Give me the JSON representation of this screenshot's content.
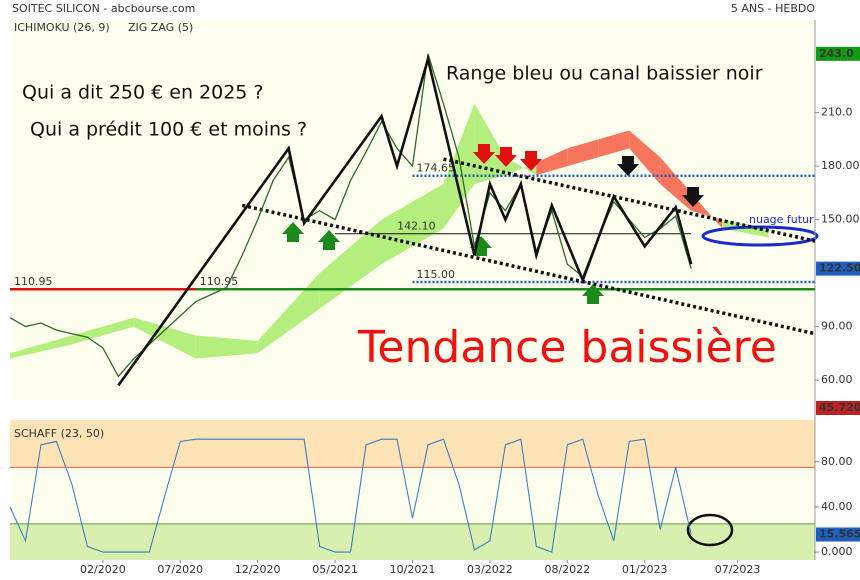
{
  "chart_data": {
    "type": "line",
    "title": "SOITEC SILICON - abcbourse.com",
    "period": "5 ANS - HEBDO",
    "indicators": [
      "ICHIMOKU (26, 9)",
      "ZIG ZAG (5)"
    ],
    "annotations": [
      "Qui a dit 250 € en 2025 ?",
      "Qui a prédit 100 € et moins ?",
      "Range  bleu ou canal baissier noir",
      "Tendance baissière",
      "nuage futur"
    ],
    "xlim": [
      "2019-08",
      "2023-12"
    ],
    "xticks": [
      {
        "value": "2020-02",
        "label": "02/2020"
      },
      {
        "value": "2020-07",
        "label": "07/2020"
      },
      {
        "value": "2020-12",
        "label": "12/2020"
      },
      {
        "value": "2021-05",
        "label": "05/2021"
      },
      {
        "value": "2021-10",
        "label": "10/2021"
      },
      {
        "value": "2022-03",
        "label": "03/2022"
      },
      {
        "value": "2022-08",
        "label": "08/2022"
      },
      {
        "value": "2023-01",
        "label": "01/2023"
      },
      {
        "value": "2023-07",
        "label": "07/2023"
      }
    ],
    "ylim": [
      48.8,
      262
    ],
    "yticks": [
      {
        "value": 210,
        "label": "210.0"
      },
      {
        "value": 180,
        "label": "180.00"
      },
      {
        "value": 150,
        "label": "150.00"
      },
      {
        "value": 90,
        "label": "90.00"
      },
      {
        "value": 60,
        "label": "60.00"
      }
    ],
    "x": [
      "2019-08",
      "2019-09",
      "2019-10",
      "2019-11",
      "2019-12",
      "2020-01",
      "2020-02",
      "2020-03",
      "2020-04",
      "2020-05",
      "2020-06",
      "2020-07",
      "2020-08",
      "2020-09",
      "2020-10",
      "2020-11",
      "2020-12",
      "2021-01",
      "2021-02",
      "2021-03",
      "2021-04",
      "2021-05",
      "2021-06",
      "2021-07",
      "2021-08",
      "2021-09",
      "2021-10",
      "2021-11",
      "2021-12",
      "2022-01",
      "2022-02",
      "2022-03",
      "2022-04",
      "2022-05",
      "2022-06",
      "2022-07",
      "2022-08",
      "2022-09",
      "2022-10",
      "2022-11",
      "2022-12",
      "2023-01",
      "2023-02",
      "2023-03",
      "2023-04"
    ],
    "price": {
      "color": "#2b6b2b",
      "values": [
        95,
        90,
        92,
        88,
        86,
        84,
        78,
        62,
        72,
        80,
        88,
        96,
        104,
        108,
        112,
        130,
        150,
        172,
        185,
        150,
        155,
        150,
        172,
        188,
        205,
        190,
        180,
        243,
        215,
        185,
        135,
        165,
        155,
        170,
        132,
        155,
        125,
        118,
        140,
        160,
        150,
        140,
        145,
        152,
        122.5
      ],
      "last_label": "122.50",
      "last_color": "#1e5fbf"
    },
    "markers": [
      {
        "value": 243,
        "label": "243.0",
        "color": "#139a13"
      }
    ],
    "zigzag": {
      "color": "#111",
      "x": [
        "2020-03",
        "2021-02",
        "2021-03",
        "2021-08",
        "2021-09",
        "2021-11",
        "2022-02",
        "2022-03",
        "2022-04",
        "2022-05",
        "2022-06",
        "2022-07",
        "2022-09",
        "2022-11",
        "2023-01",
        "2023-03",
        "2023-04"
      ],
      "values": [
        57,
        190,
        148,
        208,
        180,
        240,
        130,
        170,
        150,
        170,
        130,
        158,
        116,
        163,
        135,
        157,
        125
      ]
    },
    "cloud": {
      "colors": [
        "#b4ef7e",
        "#f7755c"
      ],
      "x": [
        "2019-08",
        "2019-12",
        "2020-04",
        "2020-08",
        "2020-12",
        "2021-04",
        "2021-08",
        "2021-12",
        "2022-02",
        "2022-04",
        "2022-06",
        "2022-08",
        "2022-10",
        "2022-12",
        "2023-02",
        "2023-04",
        "2023-06",
        "2023-09"
      ],
      "span_a": [
        75,
        85,
        95,
        85,
        82,
        120,
        150,
        170,
        215,
        185,
        175,
        180,
        185,
        190,
        170,
        155,
        150,
        145
      ],
      "span_b": [
        72,
        80,
        90,
        72,
        75,
        100,
        125,
        145,
        170,
        175,
        182,
        190,
        195,
        200,
        185,
        165,
        145,
        140
      ]
    },
    "levels": [
      {
        "value": 110.95,
        "color": "#e01010",
        "x": [
          "2019-08",
          "2020-09"
        ],
        "style": "solid"
      },
      {
        "value": 110.95,
        "color": "#1a8a1a",
        "x": [
          "2020-08",
          "2023-12"
        ],
        "style": "solid"
      },
      {
        "value": 174.65,
        "label": "174.65",
        "color": "#1e5fbf",
        "x": [
          "2021-10",
          "2023-12"
        ],
        "style": "dotted"
      },
      {
        "value": 142.1,
        "label": "142.10",
        "color": "#111",
        "x": [
          "2021-05",
          "2023-04"
        ],
        "style": "thin"
      },
      {
        "value": 115,
        "label": "115.00",
        "color": "#1e5fbf",
        "x": [
          "2021-10",
          "2023-12"
        ],
        "style": "dotted"
      }
    ],
    "trendlines": [
      {
        "x": [
          "2021-12",
          "2023-12"
        ],
        "values": [
          184,
          138
        ]
      },
      {
        "x": [
          "2020-11",
          "2023-12"
        ],
        "values": [
          158,
          86
        ]
      }
    ],
    "gap_label": {
      "value": 45.72,
      "label": "45.720",
      "color": "#c02020"
    },
    "schaff": {
      "name": "SCHAFF (23, 50)",
      "color": "#3d7fc4",
      "ylim": [
        -7,
        117
      ],
      "yticks": [
        {
          "value": 80,
          "label": "80.00"
        },
        {
          "value": 40,
          "label": "40.00"
        },
        {
          "value": 0,
          "label": "0.000"
        }
      ],
      "levels": [
        75,
        25
      ],
      "values": [
        40,
        10,
        95,
        98,
        60,
        5,
        0,
        0,
        0,
        0,
        50,
        98,
        100,
        100,
        100,
        100,
        100,
        100,
        100,
        100,
        5,
        0,
        0,
        95,
        100,
        100,
        30,
        95,
        100,
        60,
        2,
        10,
        95,
        100,
        5,
        0,
        95,
        100,
        50,
        10,
        98,
        100,
        20,
        75,
        15.565
      ]
    }
  }
}
